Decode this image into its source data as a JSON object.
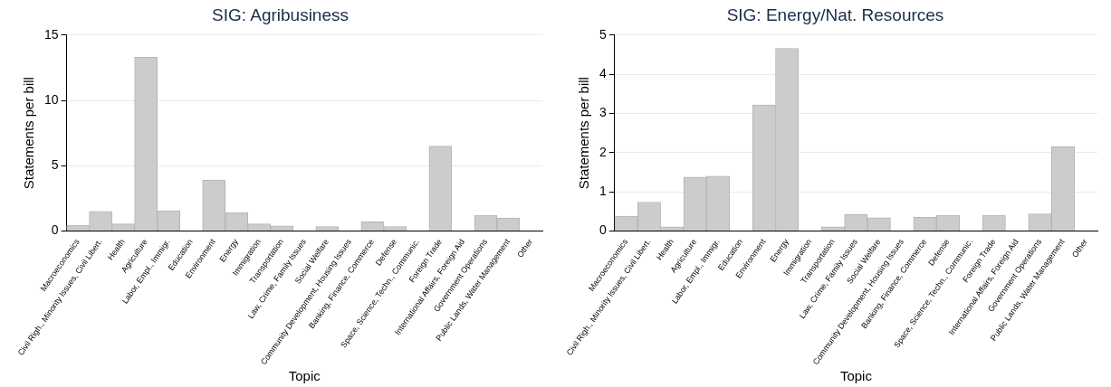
{
  "chart_data": [
    {
      "type": "bar",
      "title": "SIG: Agribusiness",
      "xlabel": "Topic",
      "ylabel": "Statements per bill",
      "categories": [
        "Macroeconomics",
        "Civil Righ., Minority Issues, Civil Libert.",
        "Health",
        "Agriculture",
        "Labor, Empl., Immigr.",
        "Education",
        "Environment",
        "Energy",
        "Immigration",
        "Transportation",
        "Law, Crime, Family Issues",
        "Social Welfare",
        "Community Development, Housing Issues",
        "Banking, Finance, Commerce",
        "Defense",
        "Space, Science, Techn., Communic.",
        "Foreign Trade",
        "International Affairs, Foreign Aid",
        "Government Operations",
        "Public Lands, Water Management",
        "Other"
      ],
      "values": [
        0.45,
        1.5,
        0.55,
        13.3,
        1.55,
        0,
        3.9,
        1.4,
        0.55,
        0.4,
        0,
        0.35,
        0,
        0.7,
        0.35,
        0,
        6.5,
        0,
        1.2,
        1.0,
        0
      ],
      "color": "#cccccc",
      "ylim": [
        0,
        15
      ],
      "yticks": [
        0,
        5,
        10,
        15
      ],
      "grid": "y",
      "legend": false
    },
    {
      "type": "bar",
      "title": "SIG: Energy/Nat. Resources",
      "xlabel": "Topic",
      "ylabel": "Statements per bill",
      "categories": [
        "Macroeconomics",
        "Civil Righ., Minority Issues, Civil Libert.",
        "Health",
        "Agriculture",
        "Labor, Empl., Immigr.",
        "Education",
        "Environment",
        "Energy",
        "Immigration",
        "Transportation",
        "Law, Crime, Family Issues",
        "Social Welfare",
        "Community Development, Housing Issues",
        "Banking, Finance, Commerce",
        "Defense",
        "Space, Science, Techn., Communic.",
        "Foreign Trade",
        "International Affairs, Foreign Aid",
        "Government Operations",
        "Public Lands, Water Management",
        "Other"
      ],
      "values": [
        0.38,
        0.74,
        0.11,
        1.38,
        1.4,
        0,
        3.22,
        4.66,
        0,
        0.11,
        0.42,
        0.34,
        0,
        0.35,
        0.4,
        0,
        0.4,
        0,
        0.44,
        2.15,
        0
      ],
      "color": "#cccccc",
      "ylim": [
        0,
        5
      ],
      "yticks": [
        0,
        1,
        2,
        3,
        4,
        5
      ],
      "grid": "y",
      "legend": false
    }
  ]
}
